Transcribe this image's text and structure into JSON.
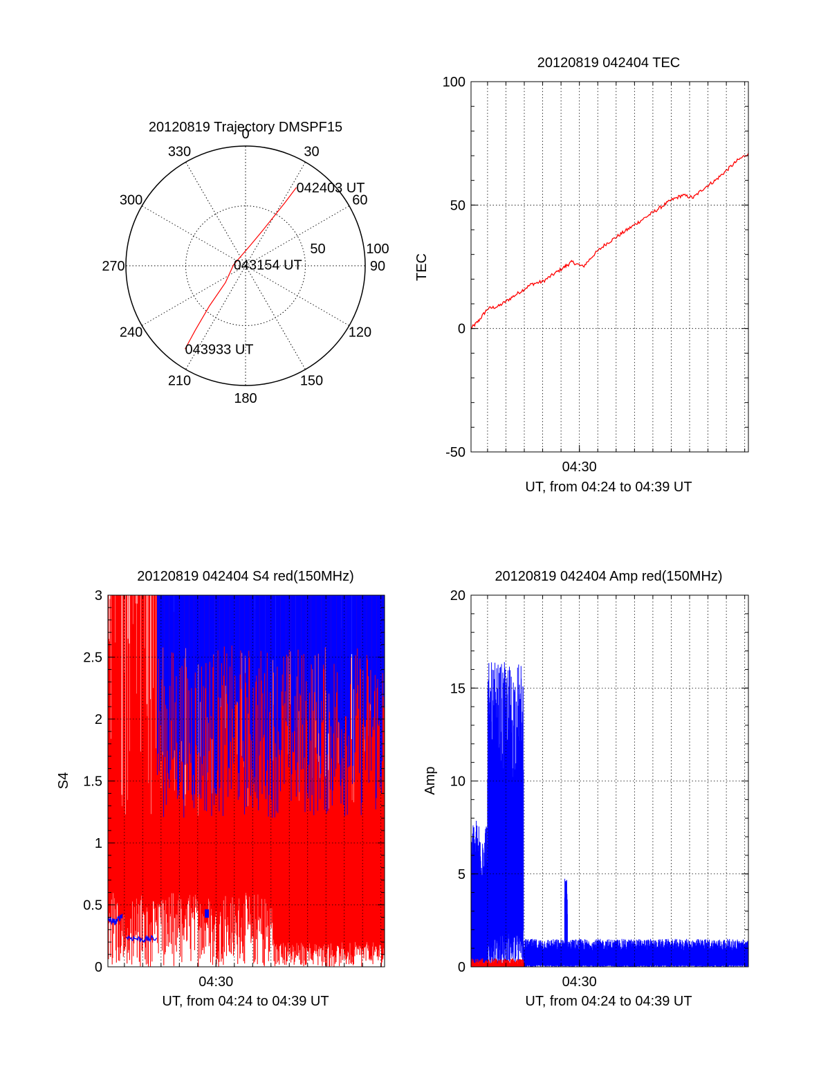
{
  "colors": {
    "red": "#ff0000",
    "blue": "#0000ff",
    "axis": "#000000",
    "grid": "#000000",
    "background": "#ffffff"
  },
  "chart_data": [
    {
      "id": "trajectory",
      "type": "polar",
      "title": "20120819 Trajectory DMSPF15",
      "angle_ticks": [
        {
          "angle": 0,
          "label": "0"
        },
        {
          "angle": 30,
          "label": "30"
        },
        {
          "angle": 60,
          "label": "60"
        },
        {
          "angle": 90,
          "label": "90"
        },
        {
          "angle": 120,
          "label": "120"
        },
        {
          "angle": 150,
          "label": "150"
        },
        {
          "angle": 180,
          "label": "180"
        },
        {
          "angle": 210,
          "label": "210"
        },
        {
          "angle": 240,
          "label": "240"
        },
        {
          "angle": 270,
          "label": "270"
        },
        {
          "angle": 300,
          "label": "300"
        },
        {
          "angle": 330,
          "label": "330"
        }
      ],
      "radial_ticks": [
        {
          "value": 50,
          "label": "50"
        },
        {
          "value": 100,
          "label": "100"
        }
      ],
      "radial_max": 100,
      "track": [
        {
          "az": 33,
          "zen": 78
        },
        {
          "az": 32,
          "zen": 62
        },
        {
          "az": 30,
          "zen": 48
        },
        {
          "az": 26,
          "zen": 33
        },
        {
          "az": 14,
          "zen": 18
        },
        {
          "az": 275,
          "zen": 10
        },
        {
          "az": 230,
          "zen": 22
        },
        {
          "az": 222,
          "zen": 45
        },
        {
          "az": 218,
          "zen": 68
        },
        {
          "az": 216,
          "zen": 86
        }
      ],
      "annotations": [
        {
          "text": "042403 UT",
          "az": 33,
          "zen": 78
        },
        {
          "text": "043154 UT",
          "az": 275,
          "zen": 10
        },
        {
          "text": "043933 UT",
          "az": 216,
          "zen": 86
        }
      ],
      "series_color": "#ff0000"
    },
    {
      "id": "tec",
      "type": "line",
      "title": "20120819 042404 TEC",
      "ylabel": "TEC",
      "xlabel": "UT, from 04:24 to 04:39 UT",
      "xlim_min": [
        24.1,
        39.2
      ],
      "ylim": [
        -50,
        100
      ],
      "yticks": [
        -50,
        0,
        50,
        100
      ],
      "xticks": [
        {
          "value": 30,
          "label": "04:30"
        }
      ],
      "grid_x_min": [
        25,
        26,
        27,
        28,
        29,
        30,
        31,
        32,
        33,
        34,
        35,
        36,
        37,
        38,
        39
      ],
      "grid_y": [
        0,
        50
      ],
      "series": [
        {
          "color": "#ff0000",
          "x": [
            24.1,
            24.5,
            25.0,
            25.6,
            26.2,
            26.8,
            27.4,
            28.0,
            28.6,
            29.2,
            29.6,
            30.2,
            30.8,
            31.4,
            32.0,
            32.6,
            33.2,
            33.8,
            34.4,
            35.0,
            35.6,
            36.2,
            36.8,
            37.4,
            38.0,
            38.6,
            39.2
          ],
          "y": [
            0,
            3,
            8,
            9,
            12,
            15,
            18,
            19,
            22,
            25,
            27,
            25,
            30,
            34,
            37,
            40,
            43,
            46,
            49,
            52,
            54,
            53,
            57,
            60,
            64,
            68,
            71
          ]
        }
      ]
    },
    {
      "id": "s4",
      "type": "line",
      "title": "20120819 042404 S4 red(150MHz)",
      "ylabel": "S4",
      "xlabel": "UT, from 04:24 to 04:39 UT",
      "xlim_min": [
        24.1,
        39.2
      ],
      "ylim": [
        0,
        3
      ],
      "yticks": [
        0,
        0.5,
        1,
        1.5,
        2,
        2.5,
        3
      ],
      "ytick_labels": [
        "0",
        "0.5",
        "1",
        "1.5",
        "2",
        "2.5",
        "3"
      ],
      "xticks": [
        {
          "value": 30,
          "label": "04:30"
        }
      ],
      "grid_x_min": [
        25,
        26,
        27,
        28,
        29,
        30,
        31,
        32,
        33,
        34,
        35,
        36,
        37,
        38,
        39
      ],
      "grid_y": [
        0.5,
        1,
        1.5,
        2,
        2.5
      ],
      "series": [
        {
          "color": "#ff0000",
          "note_sampling": "dense",
          "x_range": [
            24.1,
            39.2
          ],
          "y_range": [
            0,
            3
          ]
        },
        {
          "color": "#0000ff",
          "x_range": [
            24.1,
            39.2
          ],
          "y_range": [
            0.2,
            3
          ],
          "segments": [
            {
              "x": [
                24.1,
                24.5,
                24.9
              ],
              "y": [
                0.38,
                0.36,
                0.42
              ]
            },
            {
              "x": [
                25.1,
                26.0,
                26.8
              ],
              "y": [
                0.24,
                0.22,
                0.23
              ]
            },
            {
              "x": [
                29.5
              ],
              "y": [
                0.43
              ]
            }
          ]
        }
      ]
    },
    {
      "id": "amp",
      "type": "line",
      "title": "20120819 042404 Amp red(150MHz)",
      "ylabel": "Amp",
      "xlabel": "UT, from 04:24 to 04:39 UT",
      "xlim_min": [
        24.1,
        39.2
      ],
      "ylim": [
        0,
        20
      ],
      "yticks": [
        0,
        5,
        10,
        15,
        20
      ],
      "xticks": [
        {
          "value": 30,
          "label": "04:30"
        }
      ],
      "grid_x_min": [
        25,
        26,
        27,
        28,
        29,
        30,
        31,
        32,
        33,
        34,
        35,
        36,
        37,
        38,
        39
      ],
      "grid_y": [
        5,
        10,
        15
      ],
      "series": [
        {
          "color": "#ff0000",
          "x": [
            24.1,
            27.0
          ],
          "y": [
            0.2,
            0.3
          ]
        },
        {
          "color": "#0000ff",
          "blocks": [
            {
              "x": [
                24.1,
                25.0
              ],
              "y_min": 0.3,
              "y_max": 8.0
            },
            {
              "x": [
                25.0,
                26.95
              ],
              "y_min": 2.0,
              "y_max": 16.4
            },
            {
              "x": [
                26.95,
                39.2
              ],
              "y_min": 0.1,
              "y_max": 1.5
            },
            {
              "x": [
                29.2,
                29.35
              ],
              "y_min": 0.3,
              "y_max": 4.8
            }
          ]
        }
      ]
    }
  ]
}
